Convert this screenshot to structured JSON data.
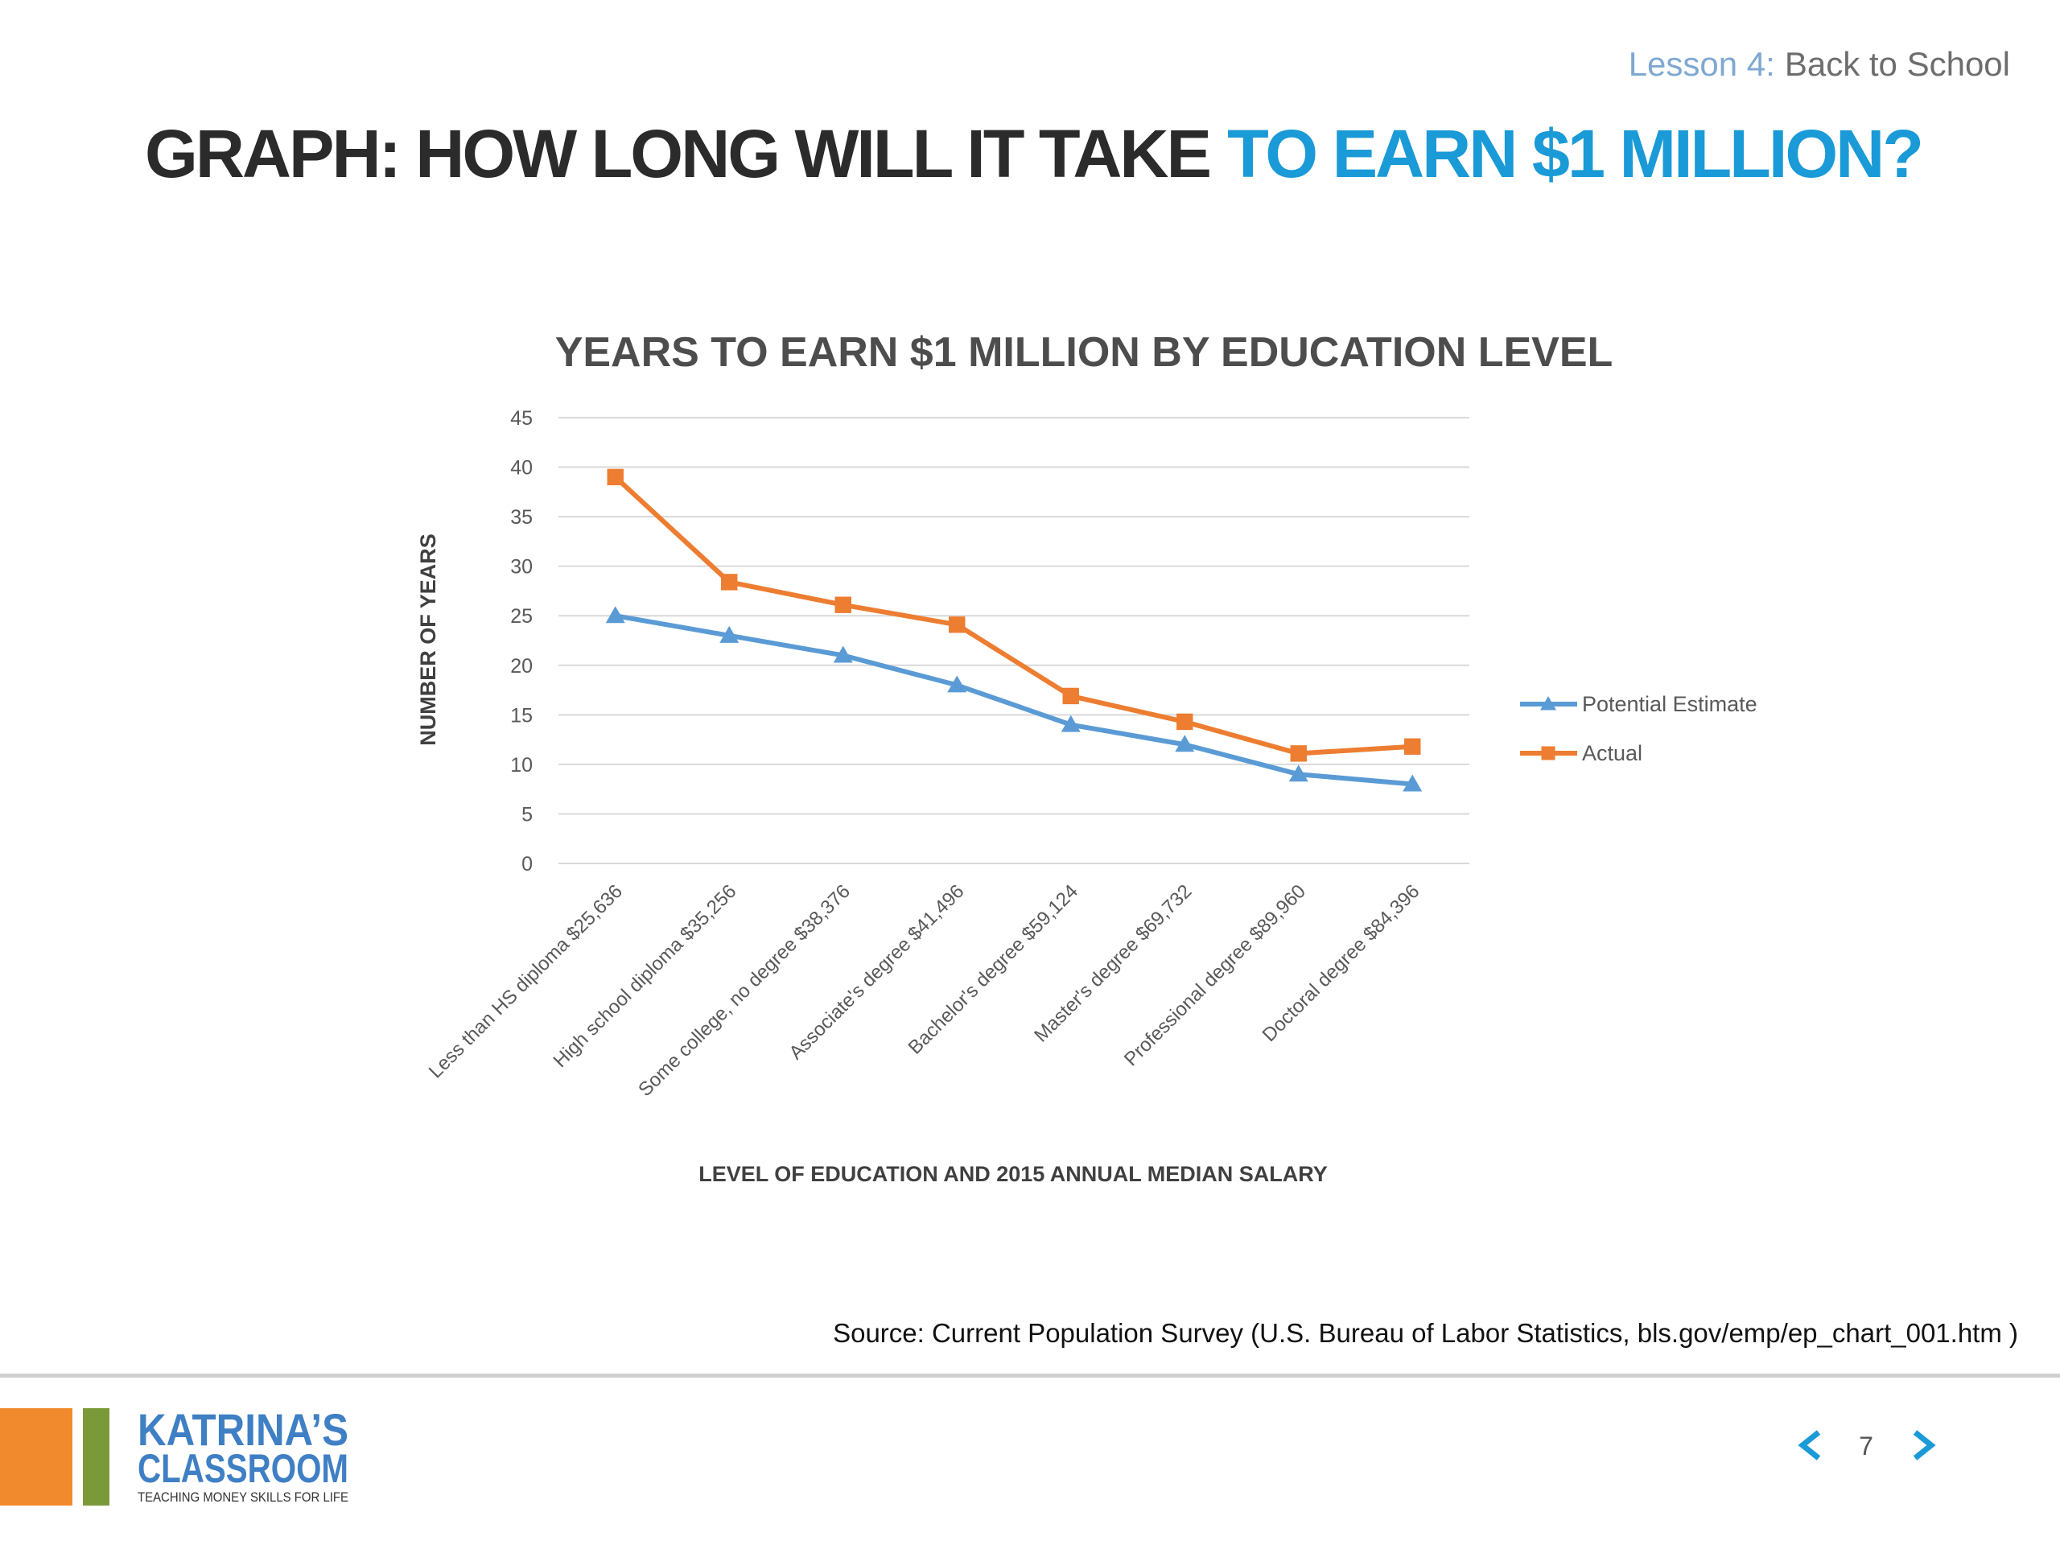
{
  "header": {
    "lesson": "Lesson 4:",
    "topic": "Back to School",
    "title_dark": "GRAPH: HOW LONG WILL IT TAKE",
    "title_accent": "TO EARN $1 MILLION?"
  },
  "chart_data": {
    "type": "line",
    "title": "YEARS TO EARN $1 MILLION BY EDUCATION LEVEL",
    "x_label": "LEVEL OF EDUCATION AND 2015 ANNUAL MEDIAN SALARY",
    "y_label": "NUMBER OF YEARS",
    "categories": [
      "Less than HS diploma $25,636",
      "High school diploma $35,256",
      "Some college, no degree $38,376",
      "Associate's degree $41,496",
      "Bachelor's degree $59,124",
      "Master's degree $69,732",
      "Professional degree $89,960",
      "Doctoral degree $84,396"
    ],
    "series": [
      {
        "name": "Potential Estimate",
        "color": "#5b9bd5",
        "marker": "triangle",
        "values": [
          25,
          23,
          21,
          18,
          14,
          12,
          9,
          8
        ]
      },
      {
        "name": "Actual",
        "color": "#ed7d31",
        "marker": "square",
        "values": [
          39,
          28.4,
          26.1,
          24.1,
          16.9,
          14.3,
          11.1,
          11.8
        ]
      }
    ],
    "ylim": [
      0,
      45
    ],
    "yticks": [
      0,
      5,
      10,
      15,
      20,
      25,
      30,
      35,
      40,
      45
    ],
    "grid": true,
    "legend": "right"
  },
  "footer": {
    "source": "Source: Current Population Survey (U.S. Bureau of Labor Statistics, bls.gov/emp/ep_chart_001.htm )",
    "logo_line1": "KATRINA’S",
    "logo_line2": "CLASSROOM",
    "logo_tagline": "TEACHING MONEY SKILLS FOR LIFE",
    "page": 7
  }
}
